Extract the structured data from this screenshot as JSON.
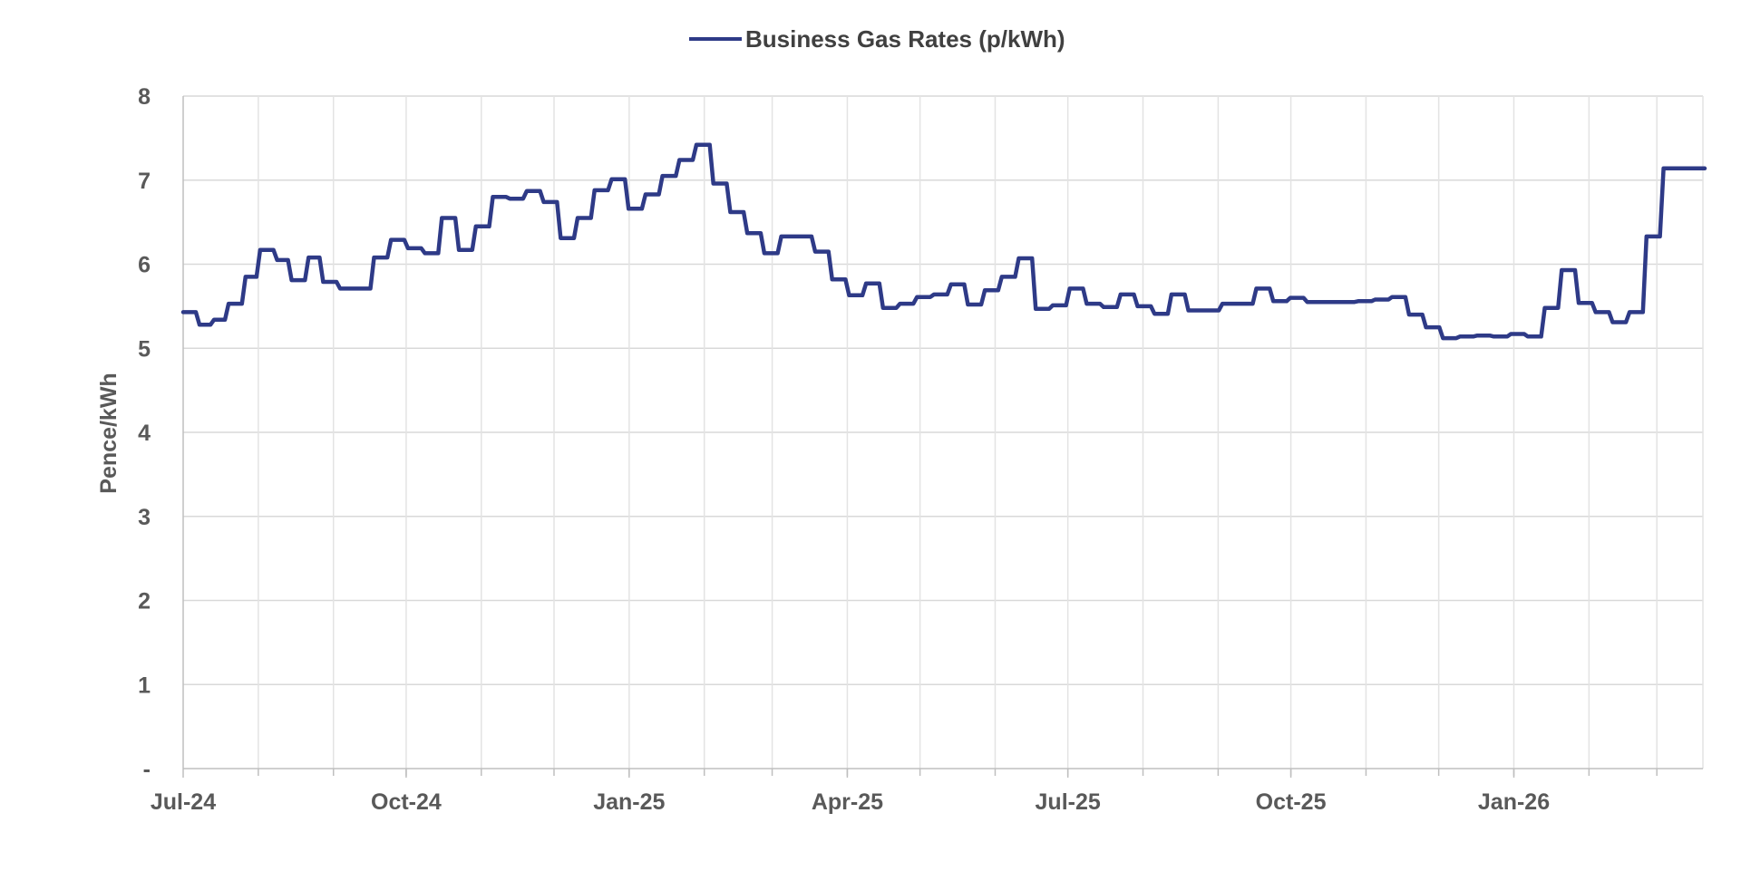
{
  "chart_data": {
    "type": "line",
    "title": "",
    "xlabel": "",
    "ylabel": "Pence/kWh",
    "ylim": [
      0,
      8
    ],
    "yticks": [
      0,
      1,
      2,
      3,
      4,
      5,
      6,
      7,
      8
    ],
    "ytick_labels": [
      "-",
      "1",
      "2",
      "3",
      "4",
      "5",
      "6",
      "7",
      "8"
    ],
    "xlim": [
      "2024-07-01",
      "2026-03-20"
    ],
    "xtick_labels": [
      "Jul-24",
      "Oct-24",
      "Jan-25",
      "Apr-25",
      "Jul-25",
      "Oct-25",
      "Jan-26"
    ],
    "xtick_dates": [
      "2024-07-01",
      "2024-10-01",
      "2025-01-01",
      "2025-04-01",
      "2025-07-01",
      "2025-10-01",
      "2026-01-01"
    ],
    "grid": true,
    "legend_position": "top-center",
    "series": [
      {
        "name": "Business Gas Rates (p/kWh)",
        "color": "#2E3A87",
        "step": true,
        "points": [
          [
            "2024-07-01",
            5.43
          ],
          [
            "2024-07-07",
            5.28
          ],
          [
            "2024-07-13",
            5.34
          ],
          [
            "2024-07-19",
            5.53
          ],
          [
            "2024-07-26",
            5.85
          ],
          [
            "2024-08-01",
            6.17
          ],
          [
            "2024-08-08",
            6.05
          ],
          [
            "2024-08-14",
            5.81
          ],
          [
            "2024-08-21",
            6.08
          ],
          [
            "2024-08-27",
            5.79
          ],
          [
            "2024-09-03",
            5.71
          ],
          [
            "2024-09-17",
            6.08
          ],
          [
            "2024-09-24",
            6.29
          ],
          [
            "2024-10-01",
            6.19
          ],
          [
            "2024-10-08",
            6.13
          ],
          [
            "2024-10-15",
            6.55
          ],
          [
            "2024-10-22",
            6.17
          ],
          [
            "2024-10-29",
            6.45
          ],
          [
            "2024-11-05",
            6.8
          ],
          [
            "2024-11-12",
            6.78
          ],
          [
            "2024-11-19",
            6.87
          ],
          [
            "2024-11-26",
            6.74
          ],
          [
            "2024-12-03",
            6.31
          ],
          [
            "2024-12-10",
            6.55
          ],
          [
            "2024-12-17",
            6.88
          ],
          [
            "2024-12-24",
            7.01
          ],
          [
            "2024-12-31",
            6.66
          ],
          [
            "2025-01-07",
            6.83
          ],
          [
            "2025-01-14",
            7.05
          ],
          [
            "2025-01-21",
            7.24
          ],
          [
            "2025-01-28",
            7.42
          ],
          [
            "2025-02-04",
            6.96
          ],
          [
            "2025-02-11",
            6.62
          ],
          [
            "2025-02-18",
            6.37
          ],
          [
            "2025-02-25",
            6.13
          ],
          [
            "2025-03-04",
            6.33
          ],
          [
            "2025-03-18",
            6.15
          ],
          [
            "2025-03-25",
            5.82
          ],
          [
            "2025-04-01",
            5.63
          ],
          [
            "2025-04-08",
            5.77
          ],
          [
            "2025-04-15",
            5.48
          ],
          [
            "2025-04-22",
            5.53
          ],
          [
            "2025-04-29",
            5.61
          ],
          [
            "2025-05-06",
            5.64
          ],
          [
            "2025-05-13",
            5.76
          ],
          [
            "2025-05-20",
            5.52
          ],
          [
            "2025-05-27",
            5.69
          ],
          [
            "2025-06-03",
            5.85
          ],
          [
            "2025-06-10",
            6.07
          ],
          [
            "2025-06-17",
            5.47
          ],
          [
            "2025-06-24",
            5.51
          ],
          [
            "2025-07-01",
            5.71
          ],
          [
            "2025-07-08",
            5.53
          ],
          [
            "2025-07-15",
            5.49
          ],
          [
            "2025-07-22",
            5.64
          ],
          [
            "2025-07-29",
            5.5
          ],
          [
            "2025-08-05",
            5.41
          ],
          [
            "2025-08-12",
            5.64
          ],
          [
            "2025-08-19",
            5.45
          ],
          [
            "2025-09-02",
            5.53
          ],
          [
            "2025-09-16",
            5.71
          ],
          [
            "2025-09-23",
            5.56
          ],
          [
            "2025-09-30",
            5.6
          ],
          [
            "2025-10-07",
            5.55
          ],
          [
            "2025-10-28",
            5.56
          ],
          [
            "2025-11-04",
            5.58
          ],
          [
            "2025-11-11",
            5.61
          ],
          [
            "2025-11-18",
            5.4
          ],
          [
            "2025-11-25",
            5.25
          ],
          [
            "2025-12-02",
            5.12
          ],
          [
            "2025-12-09",
            5.14
          ],
          [
            "2025-12-16",
            5.15
          ],
          [
            "2025-12-23",
            5.14
          ],
          [
            "2025-12-30",
            5.17
          ],
          [
            "2026-01-06",
            5.14
          ],
          [
            "2026-01-13",
            5.48
          ],
          [
            "2026-01-20",
            5.93
          ],
          [
            "2026-01-27",
            5.54
          ],
          [
            "2026-02-03",
            5.43
          ],
          [
            "2026-02-10",
            5.31
          ],
          [
            "2026-02-17",
            5.43
          ],
          [
            "2026-02-24",
            6.33
          ],
          [
            "2026-03-03",
            7.14
          ],
          [
            "2026-03-20",
            7.14
          ]
        ]
      }
    ]
  }
}
